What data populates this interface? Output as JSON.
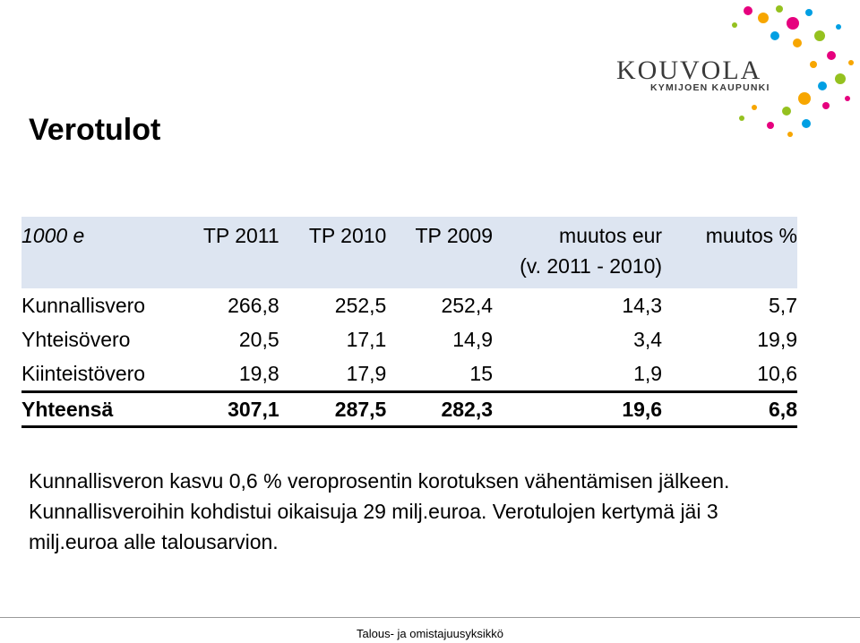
{
  "title": "Verotulot",
  "logo": {
    "name": "KOUVOLA",
    "tagline": "KYMIJOEN KAUPUNKI"
  },
  "table": {
    "header": {
      "unit": "1000 e",
      "tp2011": "TP 2011",
      "tp2010": "TP 2010",
      "tp2009": "TP 2009",
      "change_eur": "muutos eur",
      "change_pct": "muutos %",
      "change_eur_sub": "(v. 2011 - 2010)"
    },
    "rows": [
      {
        "label": "Kunnallisvero",
        "tp2011": "266,8",
        "tp2010": "252,5",
        "tp2009": "252,4",
        "change_eur": "14,3",
        "change_pct": "5,7"
      },
      {
        "label": "Yhteisövero",
        "tp2011": "20,5",
        "tp2010": "17,1",
        "tp2009": "14,9",
        "change_eur": "3,4",
        "change_pct": "19,9"
      },
      {
        "label": "Kiinteistövero",
        "tp2011": "19,8",
        "tp2010": "17,9",
        "tp2009": "15",
        "change_eur": "1,9",
        "change_pct": "10,6"
      }
    ],
    "total": {
      "label": "Yhteensä",
      "tp2011": "307,1",
      "tp2010": "287,5",
      "tp2009": "282,3",
      "change_eur": "19,6",
      "change_pct": "6,8"
    }
  },
  "paragraph": "Kunnallisveron kasvu 0,6 % veroprosentin korotuksen vähentämisen jälkeen.  Kunnallisveroihin kohdistui oikaisuja 29 milj.euroa. Verotulojen kertymä jäi 3 milj.euroa alle talousarvion.",
  "footer": "Talous- ja omistajuusyksikkö"
}
